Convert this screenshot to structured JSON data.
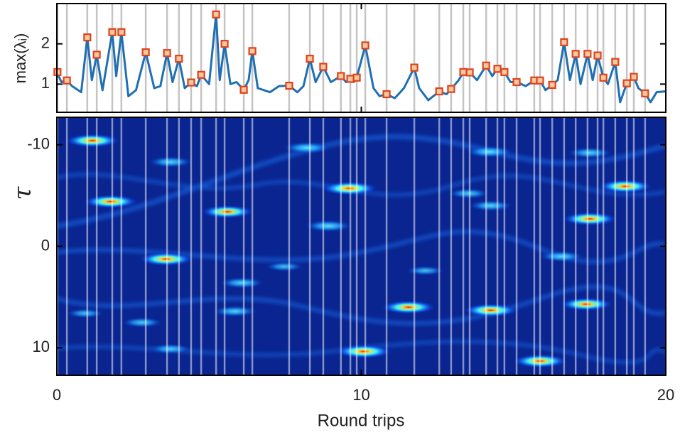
{
  "chart_data": [
    {
      "type": "line",
      "ylabel": "max(λᵢ)",
      "color": "#1f6fb4",
      "marker_color": "#e0421c",
      "xlim": [
        0,
        20
      ],
      "xticks": [
        0,
        10,
        20
      ],
      "ylim": [
        0.3,
        3.0
      ],
      "yticks": [
        1,
        2
      ],
      "x": [
        0,
        0.15,
        0.33,
        0.5,
        0.8,
        1.0,
        1.15,
        1.31,
        1.5,
        1.82,
        1.95,
        2.12,
        2.35,
        2.6,
        2.92,
        3.2,
        3.4,
        3.62,
        3.8,
        4.01,
        4.2,
        4.41,
        4.6,
        4.74,
        5.0,
        5.23,
        5.35,
        5.51,
        5.7,
        5.9,
        6.14,
        6.3,
        6.42,
        6.6,
        7.0,
        7.3,
        7.63,
        7.9,
        8.1,
        8.31,
        8.5,
        8.75,
        9.0,
        9.33,
        9.5,
        9.64,
        9.75,
        9.85,
        10.13,
        10.4,
        10.6,
        10.83,
        11.1,
        11.4,
        11.74,
        11.9,
        12.2,
        12.56,
        12.8,
        12.95,
        13.2,
        13.35,
        13.56,
        13.8,
        14.1,
        14.3,
        14.47,
        14.7,
        14.9,
        15.1,
        15.4,
        15.68,
        15.87,
        16.05,
        16.27,
        16.45,
        16.66,
        16.85,
        17.04,
        17.2,
        17.43,
        17.6,
        17.76,
        17.95,
        18.1,
        18.34,
        18.5,
        18.72,
        18.95,
        19.1,
        19.32,
        19.5,
        19.7,
        20
      ],
      "values": [
        1.3,
        1.05,
        1.09,
        0.95,
        0.8,
        2.16,
        1.1,
        1.73,
        0.85,
        2.29,
        1.2,
        2.29,
        0.7,
        0.85,
        1.79,
        0.9,
        0.95,
        1.77,
        1.05,
        1.63,
        0.9,
        1.04,
        0.95,
        1.23,
        1.0,
        2.73,
        1.1,
        2.0,
        1.0,
        1.05,
        0.86,
        1.1,
        1.82,
        0.9,
        0.8,
        0.95,
        0.96,
        0.8,
        0.95,
        1.63,
        1.05,
        1.43,
        1.05,
        1.2,
        1.05,
        1.13,
        1.05,
        1.16,
        1.96,
        0.9,
        0.7,
        0.75,
        0.65,
        0.9,
        1.41,
        0.9,
        0.6,
        0.82,
        0.75,
        0.88,
        1.1,
        1.3,
        1.29,
        1.1,
        1.46,
        1.2,
        1.38,
        1.3,
        1.05,
        1.05,
        0.95,
        1.09,
        1.09,
        0.85,
        0.98,
        1.1,
        2.04,
        1.1,
        1.75,
        1.0,
        1.75,
        1.1,
        1.71,
        1.16,
        1.0,
        1.55,
        0.55,
        1.02,
        1.18,
        0.9,
        0.77,
        0.55,
        0.8,
        0.82
      ],
      "marker_x": [
        0.02,
        0.33,
        1.0,
        1.31,
        1.82,
        2.12,
        2.92,
        3.62,
        4.01,
        4.41,
        4.74,
        5.23,
        5.51,
        6.14,
        6.42,
        7.63,
        8.31,
        8.75,
        9.33,
        9.64,
        9.85,
        10.13,
        10.83,
        11.74,
        12.56,
        12.95,
        13.35,
        13.56,
        14.1,
        14.47,
        14.7,
        15.1,
        15.68,
        15.87,
        16.27,
        16.66,
        17.04,
        17.43,
        17.76,
        17.95,
        18.34,
        18.72,
        18.95,
        19.32
      ],
      "marker_values": [
        1.3,
        1.09,
        2.16,
        1.73,
        2.29,
        2.29,
        1.79,
        1.77,
        1.63,
        1.04,
        1.23,
        2.73,
        2.0,
        0.86,
        1.82,
        0.96,
        1.63,
        1.43,
        1.2,
        1.13,
        1.16,
        1.96,
        0.75,
        1.41,
        0.82,
        0.88,
        1.3,
        1.29,
        1.46,
        1.38,
        1.3,
        1.05,
        1.09,
        1.09,
        0.98,
        2.04,
        1.75,
        1.75,
        1.71,
        1.16,
        1.55,
        1.02,
        1.18,
        0.77
      ]
    },
    {
      "type": "heatmap",
      "xlabel": "Round trips",
      "ylabel": "τ",
      "xlim": [
        0,
        20
      ],
      "xticks": [
        0,
        10,
        20
      ],
      "ylim": [
        -12.7,
        12.7
      ],
      "yticks": [
        -10,
        0,
        10
      ],
      "y_inverted": true,
      "hotspot_x": [
        1.17,
        1.77,
        3.73,
        3.59,
        5.6,
        6.07,
        5.85,
        8.21,
        8.92,
        9.61,
        10.08,
        11.55,
        14.2,
        14.25,
        14.25,
        15.87,
        17.5,
        17.39,
        18.67,
        13.53,
        16.57,
        17.5,
        2.8,
        3.73,
        0.93,
        7.47,
        12.1
      ],
      "hotspot_tau": [
        -10.4,
        -4.4,
        -8.3,
        1.26,
        -3.4,
        3.6,
        6.4,
        -9.7,
        -2.0,
        -5.7,
        10.35,
        6.0,
        -9.3,
        -4.0,
        6.3,
        11.3,
        -2.7,
        5.7,
        -5.9,
        -5.2,
        1.0,
        -9.2,
        7.5,
        10.1,
        6.6,
        2.0,
        2.4
      ],
      "hotspot_intensity": [
        0.9,
        0.9,
        0.6,
        0.9,
        0.85,
        0.6,
        0.6,
        0.7,
        0.7,
        0.95,
        0.95,
        0.9,
        0.7,
        0.6,
        0.9,
        0.9,
        0.9,
        0.85,
        0.9,
        0.5,
        0.6,
        0.6,
        0.5,
        0.5,
        0.4,
        0.4,
        0.4
      ]
    }
  ]
}
